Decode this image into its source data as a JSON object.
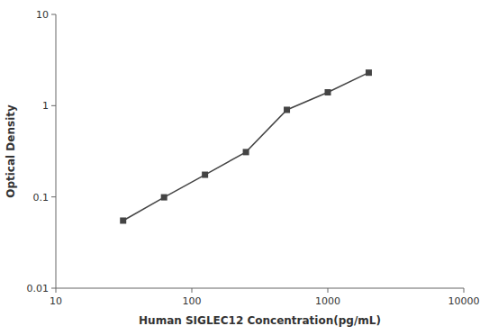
{
  "chart_data": {
    "type": "line",
    "x": [
      31.25,
      62.5,
      125,
      250,
      500,
      1000,
      2000
    ],
    "values": [
      0.055,
      0.099,
      0.175,
      0.31,
      0.9,
      1.4,
      2.3
    ],
    "xlabel": "Human SIGLEC12 Concentration(pg/mL)",
    "ylabel": "Optical Density",
    "xlim": [
      10,
      10000
    ],
    "ylim": [
      0.01,
      10
    ],
    "xticks": [
      10,
      100,
      1000,
      10000
    ],
    "yticks": [
      0.01,
      0.1,
      1,
      10
    ],
    "log": true,
    "grid": false,
    "color": "#444444",
    "marker": "square",
    "line_style": "solid"
  }
}
